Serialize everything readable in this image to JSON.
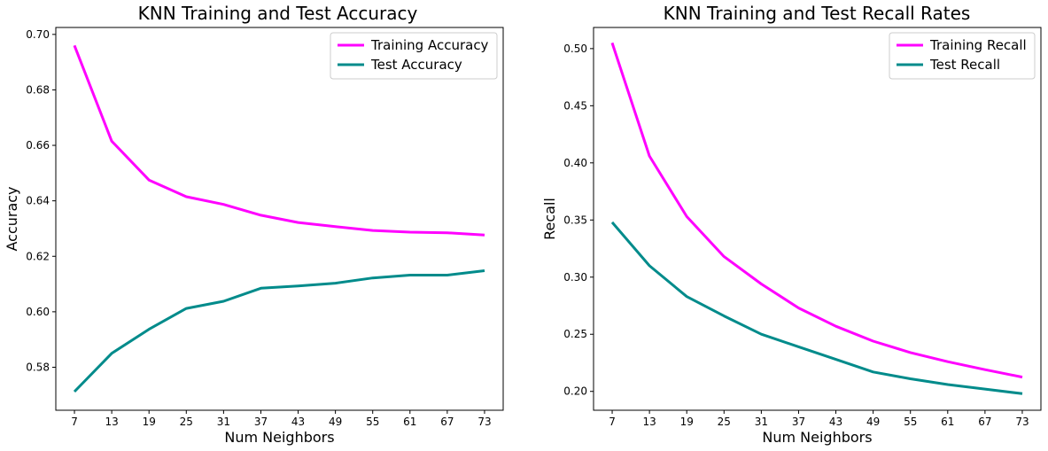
{
  "chart_data": [
    {
      "type": "line",
      "title": "KNN Training and Test Accuracy",
      "xlabel": "Num Neighbors",
      "ylabel": "Accuracy",
      "x": [
        7,
        13,
        19,
        25,
        31,
        37,
        43,
        49,
        55,
        61,
        67,
        73
      ],
      "xticks": [
        "7",
        "13",
        "19",
        "25",
        "31",
        "37",
        "43",
        "49",
        "55",
        "61",
        "67",
        "73"
      ],
      "yticks": [
        "0.58",
        "0.60",
        "0.62",
        "0.64",
        "0.66",
        "0.68",
        "0.70"
      ],
      "ytick_values": [
        0.58,
        0.6,
        0.62,
        0.64,
        0.66,
        0.68,
        0.7
      ],
      "xlim": [
        4,
        76
      ],
      "ylim": [
        0.5645,
        0.7025
      ],
      "legend_position": "top-right",
      "grid": false,
      "series": [
        {
          "name": "Training Accuracy",
          "color": "#ff00ff",
          "values": [
            0.696,
            0.6615,
            0.6475,
            0.6415,
            0.6387,
            0.6348,
            0.6322,
            0.6307,
            0.6293,
            0.6287,
            0.6285,
            0.6277
          ]
        },
        {
          "name": "Test Accuracy",
          "color": "#008b8b",
          "values": [
            0.5712,
            0.585,
            0.5937,
            0.6012,
            0.6038,
            0.6085,
            0.6093,
            0.6103,
            0.6122,
            0.6132,
            0.6132,
            0.6148
          ]
        }
      ]
    },
    {
      "type": "line",
      "title": "KNN Training and Test Recall Rates",
      "xlabel": "Num Neighbors",
      "ylabel": "Recall",
      "x": [
        7,
        13,
        19,
        25,
        31,
        37,
        43,
        49,
        55,
        61,
        67,
        73
      ],
      "xticks": [
        "7",
        "13",
        "19",
        "25",
        "31",
        "37",
        "43",
        "49",
        "55",
        "61",
        "67",
        "73"
      ],
      "yticks": [
        "0.20",
        "0.25",
        "0.30",
        "0.35",
        "0.40",
        "0.45",
        "0.50"
      ],
      "ytick_values": [
        0.2,
        0.25,
        0.3,
        0.35,
        0.4,
        0.45,
        0.5
      ],
      "xlim": [
        4,
        76
      ],
      "ylim": [
        0.1835,
        0.5185
      ],
      "legend_position": "top-right",
      "grid": false,
      "series": [
        {
          "name": "Training Recall",
          "color": "#ff00ff",
          "values": [
            0.505,
            0.406,
            0.353,
            0.318,
            0.294,
            0.273,
            0.257,
            0.244,
            0.234,
            0.226,
            0.219,
            0.2125
          ]
        },
        {
          "name": "Test Recall",
          "color": "#008b8b",
          "values": [
            0.348,
            0.31,
            0.283,
            0.266,
            0.25,
            0.239,
            0.228,
            0.217,
            0.211,
            0.206,
            0.202,
            0.198
          ]
        }
      ]
    }
  ]
}
